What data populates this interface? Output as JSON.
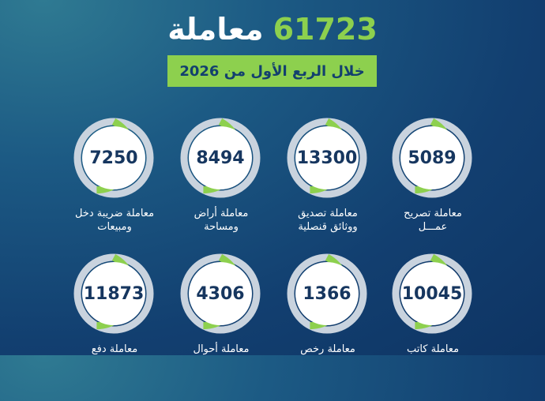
{
  "header": {
    "total": "61723",
    "total_word": "معاملة",
    "subtitle": "خلال الربع الأول من 2026"
  },
  "colors": {
    "accent": "#8dd04e",
    "ring_track": "#c9d3de",
    "number": "#16365f"
  },
  "cards": [
    {
      "value": "5089",
      "line1": "معاملة تصريح",
      "line2": "عمـــل"
    },
    {
      "value": "13300",
      "line1": "معاملة تصديق",
      "line2": "ووثائق قنصلية"
    },
    {
      "value": "8494",
      "line1": "معاملة أراض",
      "line2": "ومساحة"
    },
    {
      "value": "7250",
      "line1": "معاملة ضريبة دخل",
      "line2": "ومبيعات"
    },
    {
      "value": "10045",
      "line1": "معاملة كاتب",
      "line2": ""
    },
    {
      "value": "1366",
      "line1": "معاملة رخص",
      "line2": ""
    },
    {
      "value": "4306",
      "line1": "معاملة أحوال",
      "line2": ""
    },
    {
      "value": "11873",
      "line1": "معاملة دفع",
      "line2": ""
    }
  ]
}
